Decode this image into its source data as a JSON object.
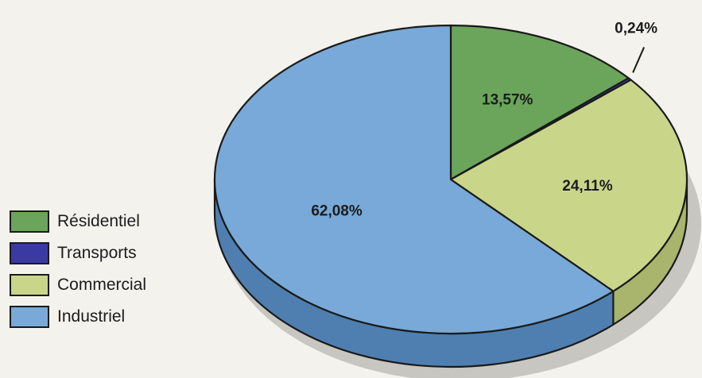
{
  "chart_data": {
    "type": "pie",
    "style": "3d",
    "title": "",
    "slices": [
      {
        "label": "Résidentiel",
        "value": 13.57,
        "value_label": "13,57%",
        "color": "#6aa55b",
        "side_color": "#5a9150"
      },
      {
        "label": "Transports",
        "value": 0.24,
        "value_label": "0,24%",
        "color": "#3b3aa3",
        "side_color": "#2f2e86"
      },
      {
        "label": "Commercial",
        "value": 24.11,
        "value_label": "24,11%",
        "color": "#c9d68a",
        "side_color": "#a9b46c"
      },
      {
        "label": "Industriel",
        "value": 62.08,
        "value_label": "62,08%",
        "color": "#78a9d8",
        "side_color": "#4f7fb0"
      }
    ],
    "legend_position": "left"
  },
  "legend": {
    "items": [
      {
        "label": "Résidentiel",
        "color": "#6aa55b"
      },
      {
        "label": "Transports",
        "color": "#3b3aa3"
      },
      {
        "label": "Commercial",
        "color": "#c9d68a"
      },
      {
        "label": "Industriel",
        "color": "#78a9d8"
      }
    ]
  }
}
